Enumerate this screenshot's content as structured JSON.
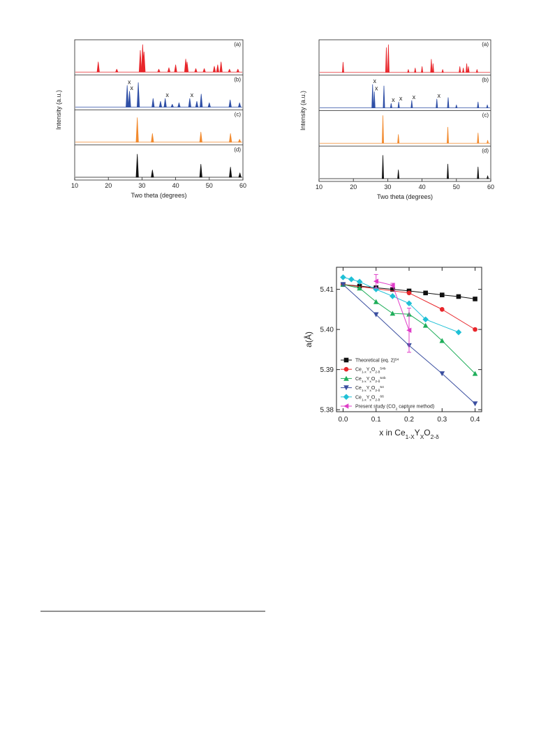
{
  "chart_data": [
    {
      "type": "spectra",
      "xlabel": "Two theta (degrees)",
      "ylabel": "Intensity (a.u.)",
      "xlim": [
        10,
        60
      ],
      "xticks": [
        10,
        20,
        30,
        40,
        50,
        60
      ],
      "series": [
        {
          "name": "(a)",
          "color": "#e8262b",
          "x": [
            17,
            22.5,
            29.5,
            30.2,
            30.6,
            35,
            38,
            40,
            43,
            43.4,
            46,
            48.5,
            51.5,
            52.5,
            53.5,
            56,
            58.5
          ],
          "values": [
            0.35,
            0.1,
            0.75,
            0.95,
            0.7,
            0.1,
            0.15,
            0.25,
            0.45,
            0.35,
            0.12,
            0.12,
            0.2,
            0.25,
            0.35,
            0.1,
            0.1
          ]
        },
        {
          "name": "(b)",
          "color": "#2f4fa6",
          "x": [
            25.6,
            26.3,
            28.9,
            33.3,
            35.5,
            36.9,
            39,
            41,
            44.2,
            46.3,
            47.6,
            50,
            56.2,
            59
          ],
          "values": [
            0.75,
            0.55,
            0.85,
            0.3,
            0.2,
            0.3,
            0.1,
            0.15,
            0.3,
            0.2,
            0.45,
            0.15,
            0.25,
            0.15
          ]
        },
        {
          "name": "(c)",
          "color": "#f28a2e",
          "x": [
            28.6,
            33.1,
            47.5,
            56.3,
            59
          ],
          "values": [
            0.85,
            0.3,
            0.35,
            0.3,
            0.1
          ]
        },
        {
          "name": "(d)",
          "color": "#111111",
          "x": [
            28.6,
            33.1,
            47.5,
            56.3,
            59.1
          ],
          "values": [
            0.8,
            0.25,
            0.45,
            0.35,
            0.15
          ]
        }
      ],
      "annotations": [
        {
          "text": "x",
          "series": 1,
          "x": 25.6
        },
        {
          "text": "x",
          "series": 1,
          "x": 26.3
        },
        {
          "text": "x",
          "series": 1,
          "x": 36.9
        },
        {
          "text": "x",
          "series": 1,
          "x": 44.2
        }
      ]
    },
    {
      "type": "spectra",
      "xlabel": "Two theta (degrees)",
      "ylabel": "Intensity (a.u.)",
      "xlim": [
        10,
        60
      ],
      "xticks": [
        10,
        20,
        30,
        40,
        50,
        60
      ],
      "series": [
        {
          "name": "(a)",
          "color": "#e8262b",
          "x": [
            17,
            29.6,
            30.2,
            36,
            38,
            40,
            42.7,
            43.2,
            46,
            51,
            52,
            53,
            53.5,
            56
          ],
          "values": [
            0.35,
            0.85,
            0.95,
            0.1,
            0.15,
            0.2,
            0.45,
            0.3,
            0.1,
            0.2,
            0.15,
            0.3,
            0.2,
            0.1
          ]
        },
        {
          "name": "(b)",
          "color": "#2f4fa6",
          "x": [
            25.6,
            26.1,
            28.9,
            31,
            33.2,
            37,
            44.3,
            47.6,
            50,
            56.3,
            59
          ],
          "values": [
            0.8,
            0.55,
            0.75,
            0.15,
            0.2,
            0.25,
            0.3,
            0.35,
            0.1,
            0.2,
            0.1
          ]
        },
        {
          "name": "(c)",
          "color": "#f28a2e",
          "x": [
            28.6,
            33.1,
            47.5,
            56.3,
            59.1
          ],
          "values": [
            0.95,
            0.3,
            0.55,
            0.35,
            0.1
          ]
        },
        {
          "name": "(d)",
          "color": "#111111",
          "x": [
            28.6,
            33.1,
            47.5,
            56.3,
            59.1
          ],
          "values": [
            0.8,
            0.3,
            0.5,
            0.4,
            0.1
          ]
        }
      ],
      "annotations": [
        {
          "text": "x",
          "series": 1,
          "x": 25.6
        },
        {
          "text": "x",
          "series": 1,
          "x": 26.1
        },
        {
          "text": "x",
          "series": 1,
          "x": 31
        },
        {
          "text": "x",
          "series": 1,
          "x": 33.2
        },
        {
          "text": "x",
          "series": 1,
          "x": 37
        },
        {
          "text": "x",
          "series": 1,
          "x": 44.3
        }
      ]
    },
    {
      "type": "line",
      "xlabel": [
        "x in Ce",
        "1-X",
        "Y",
        "X",
        "O",
        "2-δ"
      ],
      "ylabel": "a(Å)",
      "xlim": [
        -0.02,
        0.42
      ],
      "xticks": [
        {
          "value": 0,
          "label": "0.0"
        },
        0.1,
        0.2,
        0.3,
        0.4
      ],
      "ylim": [
        5.3795,
        5.4155
      ],
      "yticks": [
        5.38,
        5.39,
        {
          "value": 5.4,
          "label": "5.40"
        },
        5.41
      ],
      "legend": "lower left",
      "series": [
        {
          "name": [
            "Theoretical (eq. 2)"
          ],
          "ref": "54",
          "color": "#111111",
          "marker": "square",
          "x": [
            0,
            0.05,
            0.1,
            0.15,
            0.2,
            0.25,
            0.3,
            0.35,
            0.4
          ],
          "values": [
            5.4112,
            5.4108,
            5.4104,
            5.41,
            5.4096,
            5.4091,
            5.4086,
            5.4082,
            5.4076
          ]
        },
        {
          "name": [
            "Ce",
            "1-x",
            "Y",
            "x",
            "O",
            "2-δ"
          ],
          "ref": "54b",
          "color": "#e8262b",
          "marker": "circle",
          "x": [
            0,
            0.2,
            0.3,
            0.4
          ],
          "values": [
            5.4112,
            5.4091,
            5.405,
            5.4
          ]
        },
        {
          "name": [
            "Ce",
            "1-x",
            "Y",
            "x",
            "O",
            "2-δ"
          ],
          "ref": "54b",
          "color": "#1fae5a",
          "marker": "triangle",
          "x": [
            0,
            0.05,
            0.1,
            0.15,
            0.2,
            0.25,
            0.3,
            0.4
          ],
          "values": [
            5.4112,
            5.4103,
            5.4069,
            5.404,
            5.4038,
            5.401,
            5.3972,
            5.389
          ]
        },
        {
          "name": [
            "Ce",
            "1-x",
            "Y",
            "x",
            "O",
            "2-δ"
          ],
          "ref": "54",
          "color": "#3b4fa0",
          "marker": "triangle-down",
          "x": [
            0,
            0.1,
            0.2,
            0.3,
            0.4
          ],
          "values": [
            5.4112,
            5.4037,
            5.396,
            5.389,
            5.3815
          ]
        },
        {
          "name": [
            "Ce",
            "1-x",
            "Y",
            "x",
            "O",
            "2-δ"
          ],
          "ref": "66",
          "color": "#1fc0d6",
          "marker": "diamond",
          "x": [
            0,
            0.025,
            0.05,
            0.1,
            0.15,
            0.2,
            0.25,
            0.35
          ],
          "values": [
            5.413,
            5.4125,
            5.4119,
            5.41,
            5.4083,
            5.4065,
            5.4025,
            5.3993
          ]
        },
        {
          "name": [
            "Present study (CO",
            "2",
            " capture method)"
          ],
          "color": "#e03cc8",
          "marker": "triangle-left",
          "x": [
            0.1,
            0.15,
            0.2
          ],
          "values": [
            5.412,
            5.411,
            5.3998
          ],
          "errors": [
            0.0017,
            0.0005,
            0.0055
          ]
        }
      ]
    }
  ]
}
